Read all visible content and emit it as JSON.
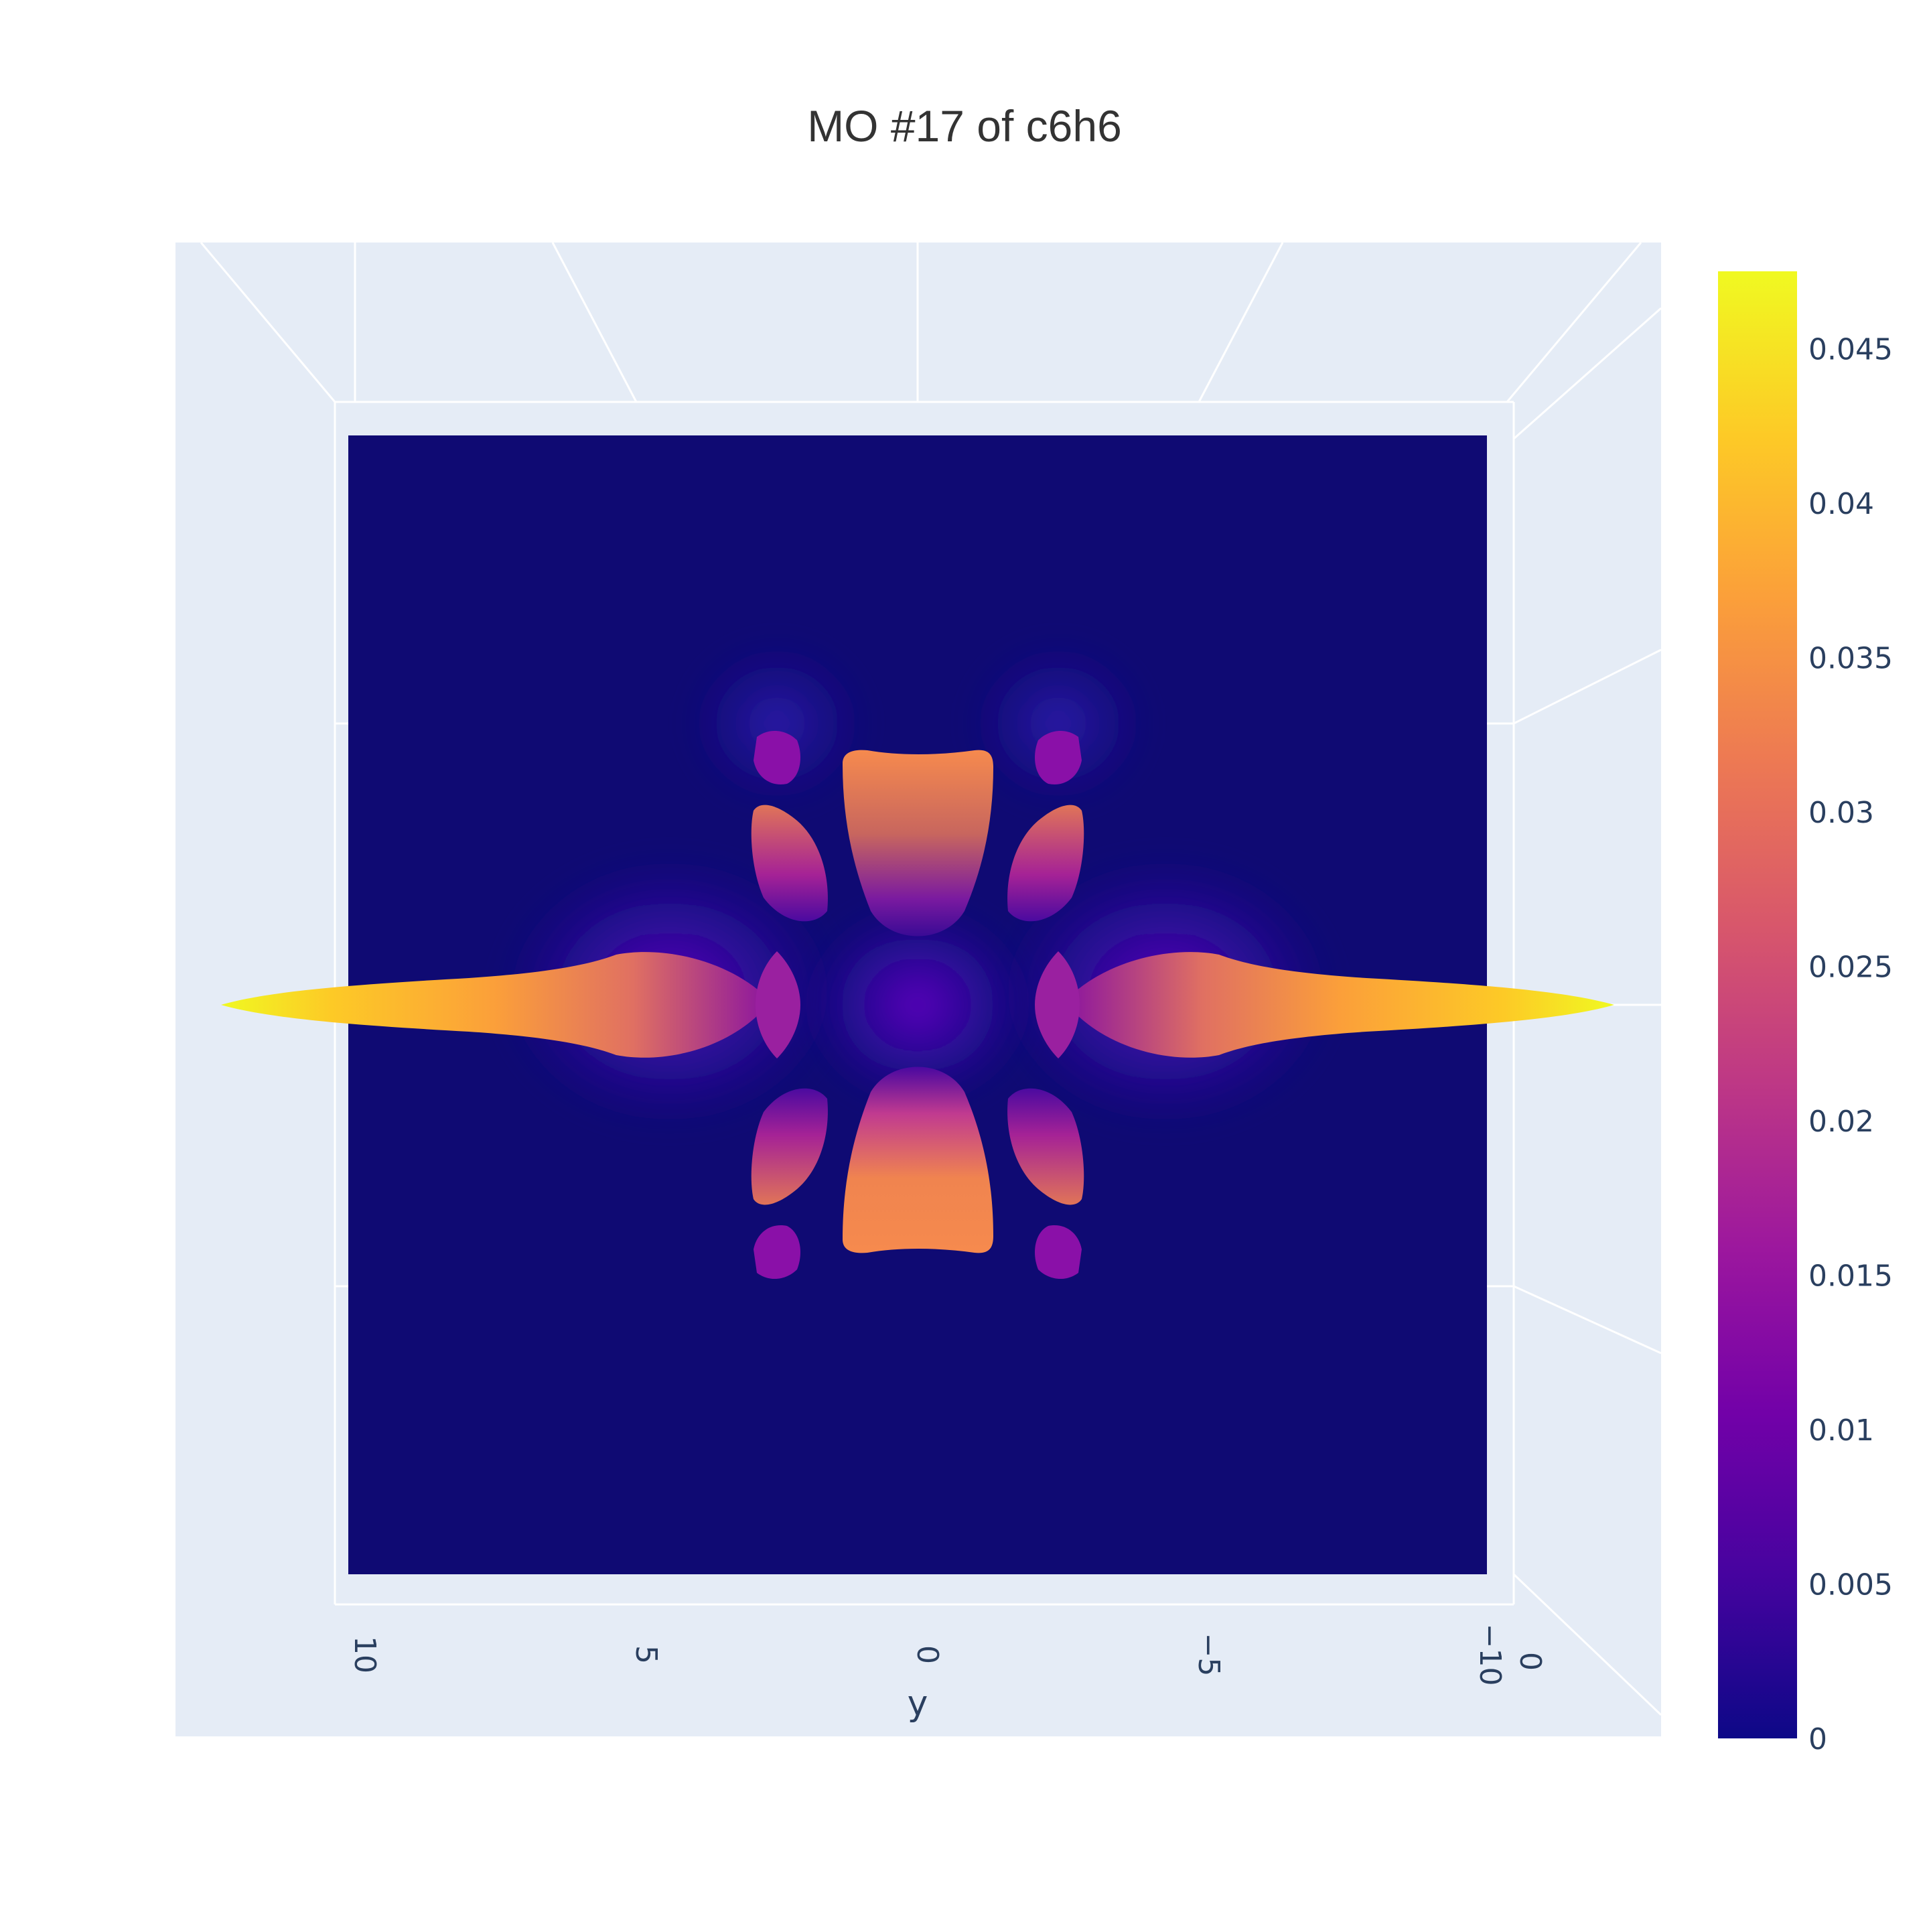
{
  "chart_data": {
    "type": "isosurface",
    "title": "MO #17 of c6h6",
    "xaxis": {
      "label": "y",
      "range": [
        10,
        -10
      ],
      "tick_values": [
        10,
        5,
        0,
        -5,
        -10
      ],
      "tick_labels": [
        "10",
        "5",
        "0",
        "−5",
        "−10"
      ]
    },
    "depth_axis_tick": "0",
    "colorscale": "Plasma",
    "colorbar": {
      "range": [
        0,
        0.0475
      ],
      "tick_values": [
        0,
        0.005,
        0.01,
        0.015,
        0.02,
        0.025,
        0.03,
        0.035,
        0.04,
        0.045
      ],
      "tick_labels": [
        "0",
        "0.005",
        "0.01",
        "0.015",
        "0.02",
        "0.025",
        "0.03",
        "0.035",
        "0.04",
        "0.045"
      ],
      "colors": [
        "#0d0887",
        "#46039f",
        "#7201a8",
        "#9c179e",
        "#bd3786",
        "#d8576b",
        "#ed7953",
        "#fb9f3a",
        "#fdca26",
        "#f0f921"
      ]
    },
    "grid": true,
    "background": "#e5ecf6",
    "floor_color": "#0f0a73"
  }
}
